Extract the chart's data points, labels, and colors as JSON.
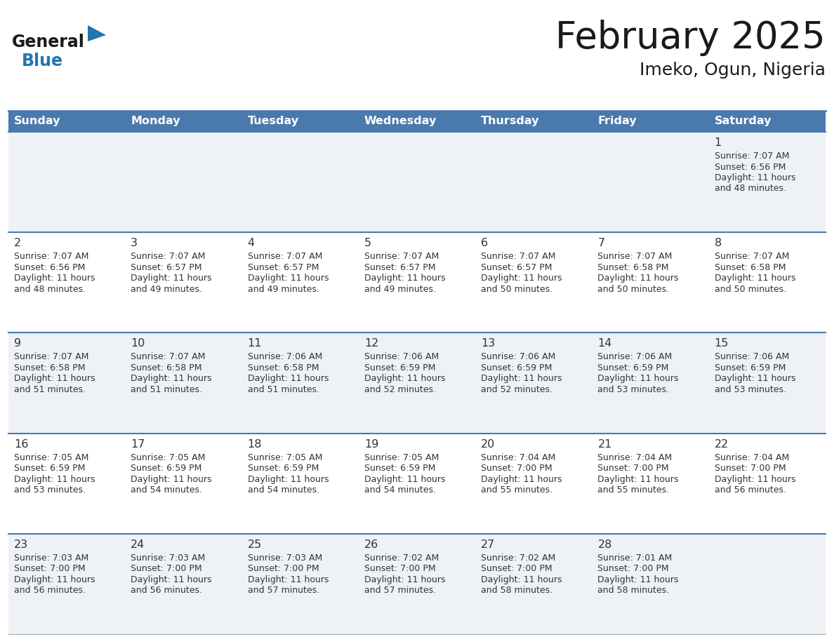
{
  "title": "February 2025",
  "subtitle": "Imeko, Ogun, Nigeria",
  "days_of_week": [
    "Sunday",
    "Monday",
    "Tuesday",
    "Wednesday",
    "Thursday",
    "Friday",
    "Saturday"
  ],
  "header_bg": "#4a7aad",
  "header_text": "#ffffff",
  "cell_bg_odd": "#eef2f7",
  "cell_bg_even": "#ffffff",
  "separator_color": "#4a7aad",
  "text_color": "#333333",
  "title_color": "#1a1a1a",
  "logo_blue": "#2176ae",
  "logo_dark": "#1a1a1a",
  "calendar_data": [
    {
      "day": 1,
      "col": 6,
      "row": 0,
      "sunrise": "7:07 AM",
      "sunset": "6:56 PM",
      "daylight_line1": "Daylight: 11 hours",
      "daylight_line2": "and 48 minutes."
    },
    {
      "day": 2,
      "col": 0,
      "row": 1,
      "sunrise": "7:07 AM",
      "sunset": "6:56 PM",
      "daylight_line1": "Daylight: 11 hours",
      "daylight_line2": "and 48 minutes."
    },
    {
      "day": 3,
      "col": 1,
      "row": 1,
      "sunrise": "7:07 AM",
      "sunset": "6:57 PM",
      "daylight_line1": "Daylight: 11 hours",
      "daylight_line2": "and 49 minutes."
    },
    {
      "day": 4,
      "col": 2,
      "row": 1,
      "sunrise": "7:07 AM",
      "sunset": "6:57 PM",
      "daylight_line1": "Daylight: 11 hours",
      "daylight_line2": "and 49 minutes."
    },
    {
      "day": 5,
      "col": 3,
      "row": 1,
      "sunrise": "7:07 AM",
      "sunset": "6:57 PM",
      "daylight_line1": "Daylight: 11 hours",
      "daylight_line2": "and 49 minutes."
    },
    {
      "day": 6,
      "col": 4,
      "row": 1,
      "sunrise": "7:07 AM",
      "sunset": "6:57 PM",
      "daylight_line1": "Daylight: 11 hours",
      "daylight_line2": "and 50 minutes."
    },
    {
      "day": 7,
      "col": 5,
      "row": 1,
      "sunrise": "7:07 AM",
      "sunset": "6:58 PM",
      "daylight_line1": "Daylight: 11 hours",
      "daylight_line2": "and 50 minutes."
    },
    {
      "day": 8,
      "col": 6,
      "row": 1,
      "sunrise": "7:07 AM",
      "sunset": "6:58 PM",
      "daylight_line1": "Daylight: 11 hours",
      "daylight_line2": "and 50 minutes."
    },
    {
      "day": 9,
      "col": 0,
      "row": 2,
      "sunrise": "7:07 AM",
      "sunset": "6:58 PM",
      "daylight_line1": "Daylight: 11 hours",
      "daylight_line2": "and 51 minutes."
    },
    {
      "day": 10,
      "col": 1,
      "row": 2,
      "sunrise": "7:07 AM",
      "sunset": "6:58 PM",
      "daylight_line1": "Daylight: 11 hours",
      "daylight_line2": "and 51 minutes."
    },
    {
      "day": 11,
      "col": 2,
      "row": 2,
      "sunrise": "7:06 AM",
      "sunset": "6:58 PM",
      "daylight_line1": "Daylight: 11 hours",
      "daylight_line2": "and 51 minutes."
    },
    {
      "day": 12,
      "col": 3,
      "row": 2,
      "sunrise": "7:06 AM",
      "sunset": "6:59 PM",
      "daylight_line1": "Daylight: 11 hours",
      "daylight_line2": "and 52 minutes."
    },
    {
      "day": 13,
      "col": 4,
      "row": 2,
      "sunrise": "7:06 AM",
      "sunset": "6:59 PM",
      "daylight_line1": "Daylight: 11 hours",
      "daylight_line2": "and 52 minutes."
    },
    {
      "day": 14,
      "col": 5,
      "row": 2,
      "sunrise": "7:06 AM",
      "sunset": "6:59 PM",
      "daylight_line1": "Daylight: 11 hours",
      "daylight_line2": "and 53 minutes."
    },
    {
      "day": 15,
      "col": 6,
      "row": 2,
      "sunrise": "7:06 AM",
      "sunset": "6:59 PM",
      "daylight_line1": "Daylight: 11 hours",
      "daylight_line2": "and 53 minutes."
    },
    {
      "day": 16,
      "col": 0,
      "row": 3,
      "sunrise": "7:05 AM",
      "sunset": "6:59 PM",
      "daylight_line1": "Daylight: 11 hours",
      "daylight_line2": "and 53 minutes."
    },
    {
      "day": 17,
      "col": 1,
      "row": 3,
      "sunrise": "7:05 AM",
      "sunset": "6:59 PM",
      "daylight_line1": "Daylight: 11 hours",
      "daylight_line2": "and 54 minutes."
    },
    {
      "day": 18,
      "col": 2,
      "row": 3,
      "sunrise": "7:05 AM",
      "sunset": "6:59 PM",
      "daylight_line1": "Daylight: 11 hours",
      "daylight_line2": "and 54 minutes."
    },
    {
      "day": 19,
      "col": 3,
      "row": 3,
      "sunrise": "7:05 AM",
      "sunset": "6:59 PM",
      "daylight_line1": "Daylight: 11 hours",
      "daylight_line2": "and 54 minutes."
    },
    {
      "day": 20,
      "col": 4,
      "row": 3,
      "sunrise": "7:04 AM",
      "sunset": "7:00 PM",
      "daylight_line1": "Daylight: 11 hours",
      "daylight_line2": "and 55 minutes."
    },
    {
      "day": 21,
      "col": 5,
      "row": 3,
      "sunrise": "7:04 AM",
      "sunset": "7:00 PM",
      "daylight_line1": "Daylight: 11 hours",
      "daylight_line2": "and 55 minutes."
    },
    {
      "day": 22,
      "col": 6,
      "row": 3,
      "sunrise": "7:04 AM",
      "sunset": "7:00 PM",
      "daylight_line1": "Daylight: 11 hours",
      "daylight_line2": "and 56 minutes."
    },
    {
      "day": 23,
      "col": 0,
      "row": 4,
      "sunrise": "7:03 AM",
      "sunset": "7:00 PM",
      "daylight_line1": "Daylight: 11 hours",
      "daylight_line2": "and 56 minutes."
    },
    {
      "day": 24,
      "col": 1,
      "row": 4,
      "sunrise": "7:03 AM",
      "sunset": "7:00 PM",
      "daylight_line1": "Daylight: 11 hours",
      "daylight_line2": "and 56 minutes."
    },
    {
      "day": 25,
      "col": 2,
      "row": 4,
      "sunrise": "7:03 AM",
      "sunset": "7:00 PM",
      "daylight_line1": "Daylight: 11 hours",
      "daylight_line2": "and 57 minutes."
    },
    {
      "day": 26,
      "col": 3,
      "row": 4,
      "sunrise": "7:02 AM",
      "sunset": "7:00 PM",
      "daylight_line1": "Daylight: 11 hours",
      "daylight_line2": "and 57 minutes."
    },
    {
      "day": 27,
      "col": 4,
      "row": 4,
      "sunrise": "7:02 AM",
      "sunset": "7:00 PM",
      "daylight_line1": "Daylight: 11 hours",
      "daylight_line2": "and 58 minutes."
    },
    {
      "day": 28,
      "col": 5,
      "row": 4,
      "sunrise": "7:01 AM",
      "sunset": "7:00 PM",
      "daylight_line1": "Daylight: 11 hours",
      "daylight_line2": "and 58 minutes."
    }
  ]
}
